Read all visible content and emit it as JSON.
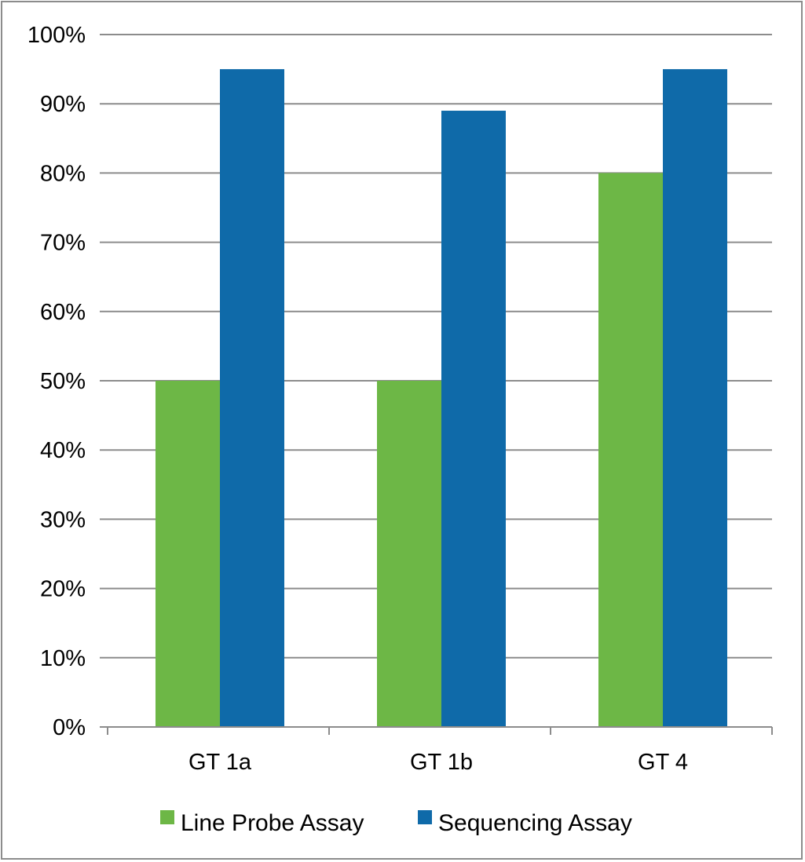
{
  "chart_data": {
    "type": "bar",
    "title": "",
    "xlabel": "",
    "ylabel": "",
    "categories": [
      "GT 1a",
      "GT 1b",
      "GT 4"
    ],
    "series": [
      {
        "name": "Line Probe Assay",
        "values": [
          50,
          50,
          80
        ],
        "color": "#6db746"
      },
      {
        "name": "Sequencing Assay",
        "values": [
          95,
          89,
          95
        ],
        "color": "#0f6aa9"
      }
    ],
    "ylim": [
      0,
      100
    ],
    "yticks": [
      0,
      10,
      20,
      30,
      40,
      50,
      60,
      70,
      80,
      90,
      100
    ],
    "ytick_labels": [
      "0%",
      "10%",
      "20%",
      "30%",
      "40%",
      "50%",
      "60%",
      "70%",
      "80%",
      "90%",
      "100%"
    ],
    "grid": true,
    "legend_position": "bottom",
    "gridline_color": "#8c8c8c"
  }
}
